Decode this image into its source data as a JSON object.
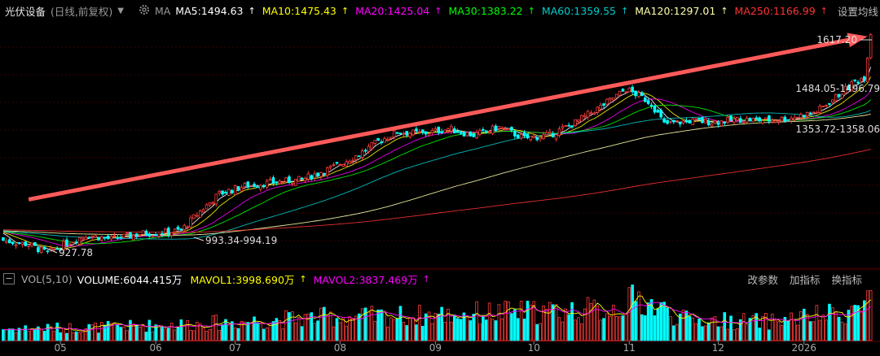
{
  "header": {
    "name": "光伏设备",
    "mode": "(日线,前复权)",
    "dropdown_glyph": "▼",
    "ma_label": "MA",
    "settings_label": "设置均线",
    "ma_items": [
      {
        "label": "MA5:1494.63",
        "color": "#ffffff",
        "arrow": "↑"
      },
      {
        "label": "MA10:1475.43",
        "color": "#ffff00",
        "arrow": "↑"
      },
      {
        "label": "MA20:1425.04",
        "color": "#ff00ff",
        "arrow": "↑"
      },
      {
        "label": "MA30:1383.22",
        "color": "#00ff00",
        "arrow": "↑"
      },
      {
        "label": "MA60:1359.55",
        "color": "#00cccc",
        "arrow": "↑"
      },
      {
        "label": "MA120:1297.01",
        "color": "#ffffaa",
        "arrow": "↑"
      },
      {
        "label": "MA250:1166.99",
        "color": "#ff3333",
        "arrow": "↑"
      }
    ]
  },
  "volume_header": {
    "collapse_glyph": "−",
    "vol_label": "VOL(5,10)",
    "volume": "VOLUME:6044.415万",
    "mavol1": "MAVOL1:3998.690万",
    "mavol2": "MAVOL2:3837.469万",
    "arrow": "↑",
    "buttons": [
      "改参数",
      "加指标",
      "换指标"
    ]
  },
  "annotations": [
    "1617.20",
    "1484.05-1496.79",
    "1353.72-1358.06",
    "993.34-994.19",
    "927.78"
  ],
  "colors": {
    "up": "#ff3c3c",
    "down": "#00ffff",
    "arrow": "#ff5a5a",
    "grid": "#3a0000",
    "axis_text": "#a8a8a8"
  },
  "chart_data": {
    "type": "candlestick",
    "x_ticks": [
      "05",
      "06",
      "07",
      "08",
      "09",
      "10",
      "11",
      "12",
      "2026"
    ],
    "y_range": [
      880,
      1660
    ],
    "volume_range_wan": [
      0,
      6400
    ],
    "waypoints_close": [
      [
        0,
        968
      ],
      [
        8,
        955
      ],
      [
        14,
        927.78
      ],
      [
        20,
        960
      ],
      [
        26,
        985
      ],
      [
        34,
        972
      ],
      [
        44,
        990
      ],
      [
        52,
        994
      ],
      [
        56,
        1000
      ],
      [
        62,
        1060
      ],
      [
        68,
        1115
      ],
      [
        76,
        1140
      ],
      [
        84,
        1150
      ],
      [
        94,
        1160
      ],
      [
        104,
        1200
      ],
      [
        112,
        1240
      ],
      [
        118,
        1280
      ],
      [
        124,
        1310
      ],
      [
        132,
        1305
      ],
      [
        140,
        1320
      ],
      [
        148,
        1300
      ],
      [
        156,
        1325
      ],
      [
        164,
        1290
      ],
      [
        172,
        1300
      ],
      [
        180,
        1340
      ],
      [
        188,
        1390
      ],
      [
        196,
        1445
      ],
      [
        200,
        1425
      ],
      [
        204,
        1400
      ],
      [
        208,
        1335
      ],
      [
        216,
        1345
      ],
      [
        224,
        1342
      ],
      [
        232,
        1350
      ],
      [
        240,
        1347
      ],
      [
        248,
        1355
      ],
      [
        256,
        1375
      ],
      [
        262,
        1420
      ],
      [
        268,
        1470
      ],
      [
        271,
        1483
      ],
      [
        273,
        1617.2
      ]
    ],
    "seed": 7,
    "ma_lines": [
      {
        "name": "MA5",
        "period": 5,
        "color": "#ffffff"
      },
      {
        "name": "MA10",
        "period": 10,
        "color": "#ffff00"
      },
      {
        "name": "MA20",
        "period": 20,
        "color": "#ff00ff"
      },
      {
        "name": "MA30",
        "period": 30,
        "color": "#00ff00"
      },
      {
        "name": "MA60",
        "period": 60,
        "color": "#00cccc"
      },
      {
        "name": "MA120",
        "period": 120,
        "color": "#ffffaa"
      },
      {
        "name": "MA250",
        "period": 250,
        "color": "#ff3333"
      }
    ],
    "trend_arrow": {
      "from": [
        8,
        1097
      ],
      "to": [
        272,
        1612
      ]
    },
    "volume_waypoints_wan": [
      [
        0,
        1400
      ],
      [
        30,
        1600
      ],
      [
        60,
        2000
      ],
      [
        100,
        2800
      ],
      [
        130,
        3000
      ],
      [
        150,
        3300
      ],
      [
        190,
        3700
      ],
      [
        200,
        5000
      ],
      [
        215,
        2500
      ],
      [
        240,
        2300
      ],
      [
        262,
        3200
      ],
      [
        270,
        4000
      ],
      [
        273,
        6044.415
      ]
    ]
  }
}
